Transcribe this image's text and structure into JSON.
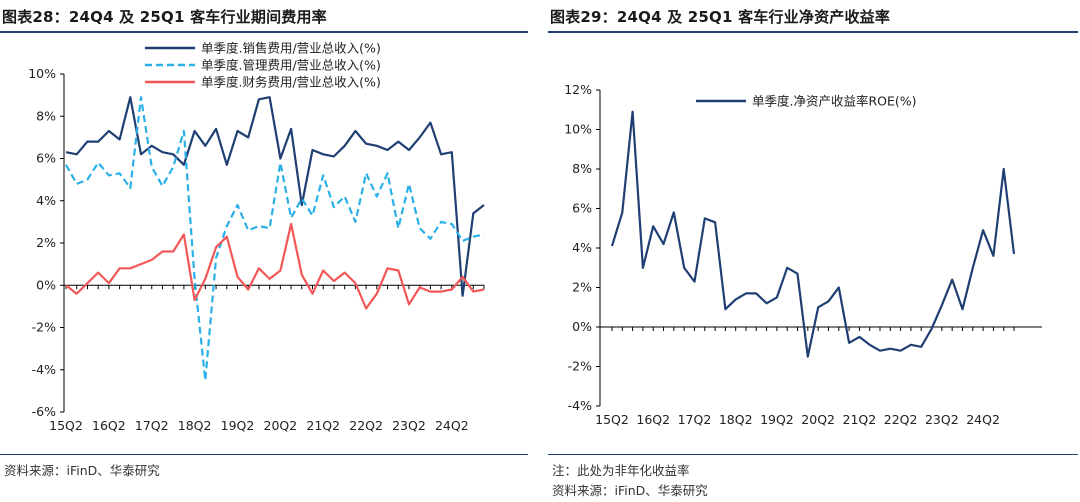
{
  "charts": [
    {
      "title_prefix": "图表28：",
      "title_text": "24Q4 及 25Q1 客车行业期间费用率",
      "source": "资料来源：iFinD、华泰研究",
      "note": ""
    },
    {
      "title_prefix": "图表29：",
      "title_text": "24Q4 及 25Q1 客车行业净资产收益率",
      "source": "资料来源：iFinD、华泰研究",
      "note": "注：此处为非年化收益率"
    }
  ],
  "chart_data": [
    {
      "type": "line",
      "title": "24Q4 及 25Q1 客车行业期间费用率",
      "x_tick_labels": [
        "15Q2",
        "16Q2",
        "17Q2",
        "18Q2",
        "19Q2",
        "20Q2",
        "21Q2",
        "22Q2",
        "23Q2",
        "24Q2"
      ],
      "x_tick_first_index": 0,
      "x_tick_step": 4,
      "ylim": [
        -6,
        10
      ],
      "yticks": [
        -6,
        -4,
        -2,
        0,
        2,
        4,
        6,
        8,
        10
      ],
      "ytick_labels": [
        "-6%",
        "-4%",
        "-2%",
        "0%",
        "2%",
        "4%",
        "6%",
        "8%",
        "10%"
      ],
      "legend_position": "top-center",
      "grid": false,
      "series": [
        {
          "name": "单季度.销售费用/营业总收入(%)",
          "color": "#1f3f73",
          "style": "solid",
          "values": [
            6.3,
            6.2,
            6.8,
            6.8,
            7.3,
            6.9,
            8.9,
            6.2,
            6.6,
            6.3,
            6.2,
            5.7,
            7.3,
            6.6,
            7.4,
            5.7,
            7.3,
            7.0,
            8.8,
            8.9,
            6.0,
            7.4,
            3.8,
            6.4,
            6.2,
            6.1,
            6.6,
            7.3,
            6.7,
            6.6,
            6.4,
            6.8,
            6.4,
            7.0,
            7.7,
            6.2,
            6.3,
            -0.5,
            3.4,
            3.8
          ]
        },
        {
          "name": "单季度.管理费用/营业总收入(%)",
          "color": "#2ab0e6",
          "style": "dashed",
          "values": [
            5.7,
            4.8,
            5.0,
            5.8,
            5.2,
            5.3,
            4.6,
            8.9,
            5.6,
            4.7,
            5.6,
            7.3,
            0.3,
            -4.5,
            1.3,
            2.8,
            3.8,
            2.6,
            2.8,
            2.7,
            5.8,
            3.2,
            4.1,
            3.3,
            5.2,
            3.7,
            4.2,
            3.0,
            5.3,
            4.2,
            5.3,
            2.7,
            4.8,
            2.7,
            2.2,
            3.0,
            2.9,
            2.1,
            2.3,
            2.4
          ]
        },
        {
          "name": "单季度.财务费用/营业总收入(%)",
          "color": "#f25757",
          "style": "solid",
          "values": [
            0.0,
            -0.4,
            0.1,
            0.6,
            0.1,
            0.8,
            0.8,
            1.0,
            1.2,
            1.6,
            1.6,
            2.4,
            -0.7,
            0.3,
            1.8,
            2.3,
            0.4,
            -0.2,
            0.8,
            0.3,
            0.7,
            2.9,
            0.5,
            -0.4,
            0.7,
            0.2,
            0.6,
            0.1,
            -1.1,
            -0.4,
            0.8,
            0.7,
            -0.9,
            -0.1,
            -0.3,
            -0.3,
            -0.2,
            0.4,
            -0.3,
            -0.2
          ]
        }
      ]
    },
    {
      "type": "line",
      "title": "24Q4 及 25Q1 客车行业净资产收益率",
      "x_tick_labels": [
        "15Q2",
        "16Q2",
        "17Q2",
        "18Q2",
        "19Q2",
        "20Q2",
        "21Q2",
        "22Q2",
        "23Q2",
        "24Q2"
      ],
      "x_tick_first_index": 0,
      "x_tick_step": 4,
      "ylim": [
        -4,
        12
      ],
      "yticks": [
        -4,
        -2,
        0,
        2,
        4,
        6,
        8,
        10,
        12
      ],
      "ytick_labels": [
        "-4%",
        "-2%",
        "0%",
        "2%",
        "4%",
        "6%",
        "8%",
        "10%",
        "12%"
      ],
      "legend_position": "top-center",
      "grid": false,
      "series": [
        {
          "name": "单季度.净资产收益率ROE(%)",
          "color": "#1f3f73",
          "style": "solid",
          "values": [
            4.1,
            5.8,
            10.9,
            3.0,
            5.1,
            4.2,
            5.8,
            3.0,
            2.3,
            5.5,
            5.3,
            0.9,
            1.4,
            1.7,
            1.7,
            1.2,
            1.5,
            3.0,
            2.7,
            -1.5,
            1.0,
            1.3,
            2.0,
            -0.8,
            -0.5,
            -0.9,
            -1.2,
            -1.1,
            -1.2,
            -0.9,
            -1.0,
            -0.1,
            1.1,
            2.4,
            0.9,
            3.0,
            4.9,
            3.6,
            8.0,
            3.7
          ]
        }
      ]
    }
  ]
}
